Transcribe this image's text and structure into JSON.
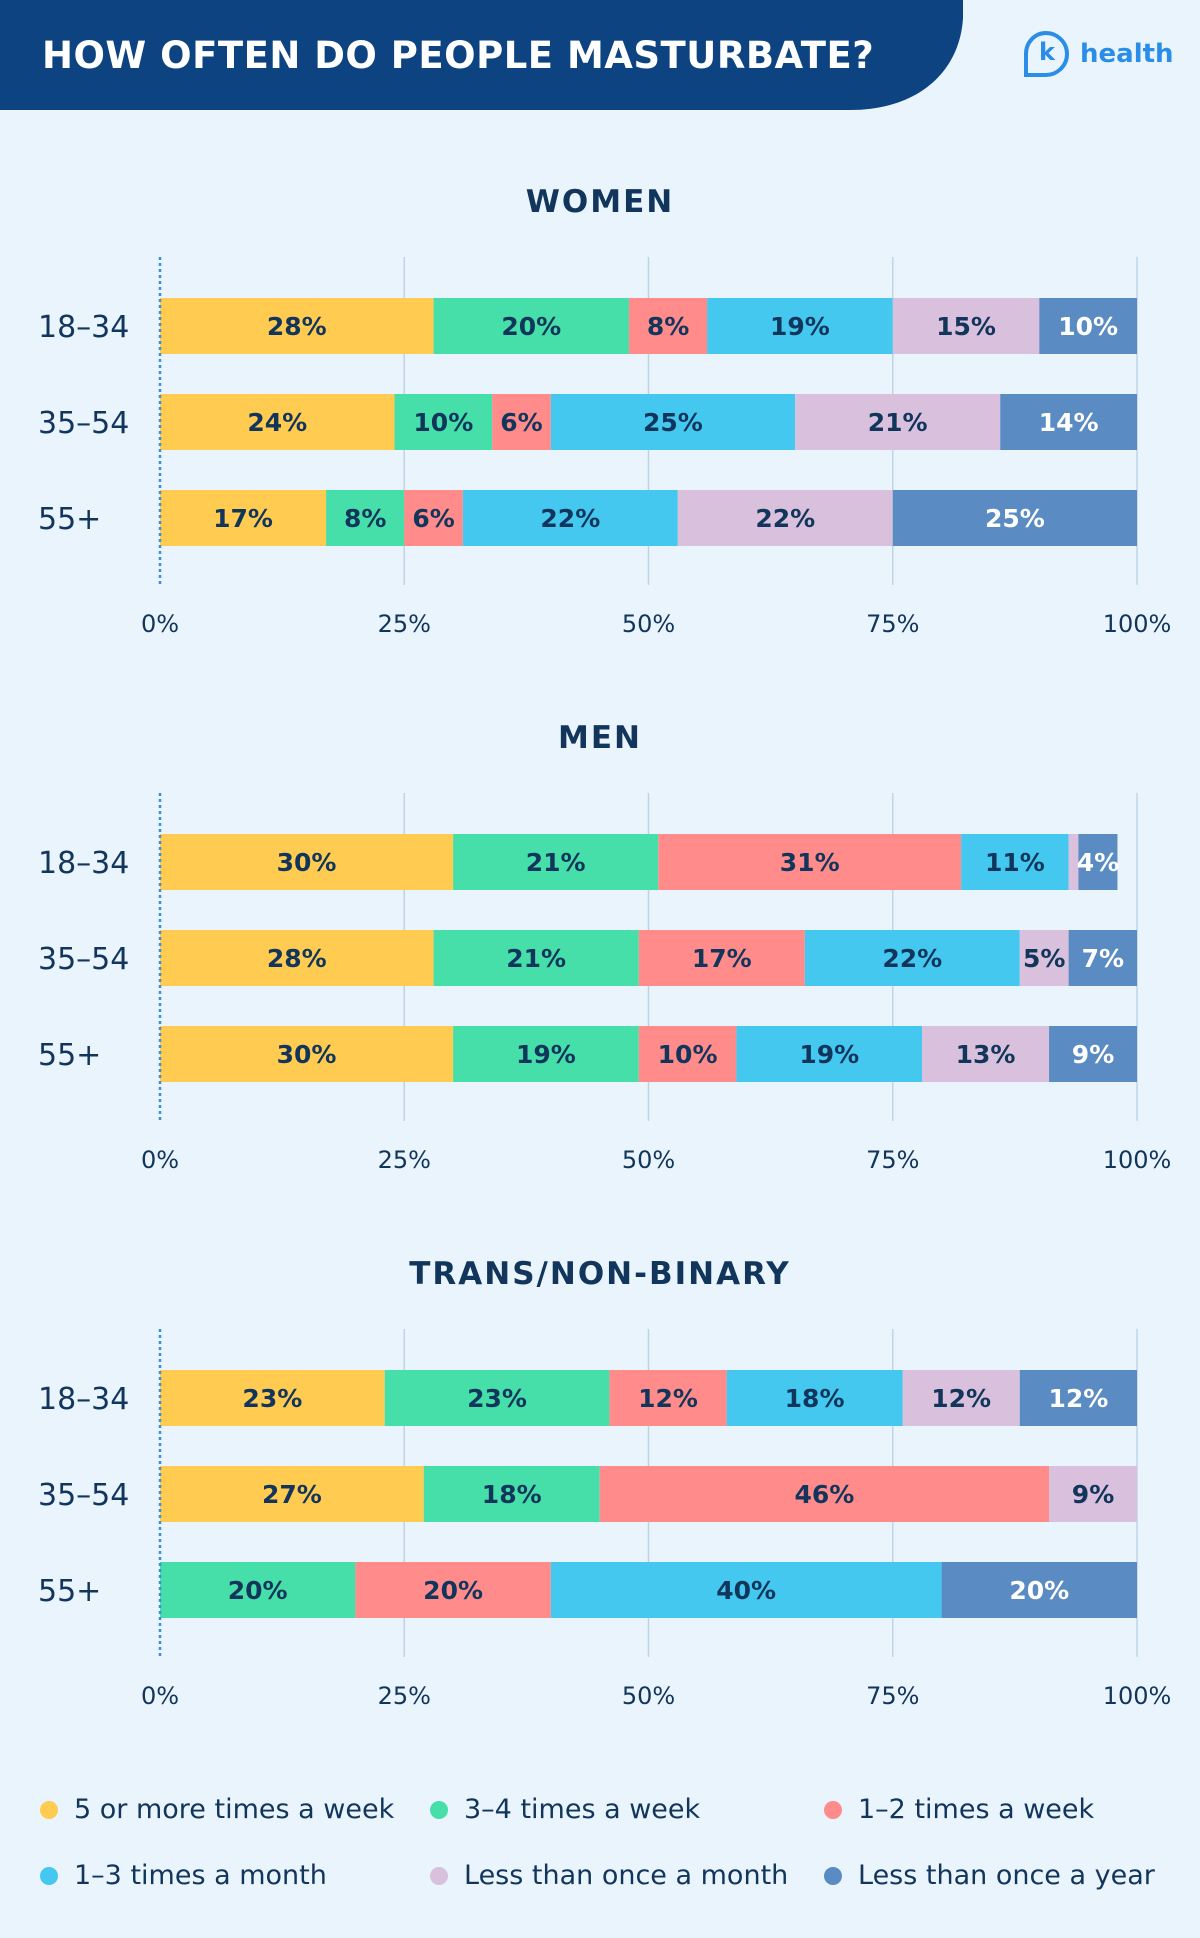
{
  "header": {
    "title": "HOW OFTEN DO PEOPLE MASTURBATE?",
    "banner_color": "#0E4382"
  },
  "logo": {
    "letter": "k",
    "text": "health",
    "color": "#2A8DE8"
  },
  "colors": {
    "text_dark": "#12355B",
    "grid": "#BFD5E6",
    "zero_line": "#3A8FD8"
  },
  "chart_data": [
    {
      "type": "bar",
      "stacked": true,
      "orientation": "horizontal",
      "title": "WOMEN",
      "categories": [
        "18-34",
        "35-54",
        "55+"
      ],
      "xlim": [
        0,
        100
      ],
      "xticks": [
        "0%",
        "25%",
        "50%",
        "75%",
        "100%"
      ],
      "grid": true,
      "series": [
        {
          "name": "5 or more times a week",
          "color": "#FFCB51",
          "values": [
            28,
            24,
            17
          ],
          "labels": [
            "28%",
            "24%",
            "17%"
          ]
        },
        {
          "name": "3-4 times a week",
          "color": "#47DFA9",
          "values": [
            20,
            10,
            8
          ],
          "labels": [
            "20%",
            "10%",
            "8%"
          ]
        },
        {
          "name": "1-2 times a week",
          "color": "#FF8B8B",
          "values": [
            8,
            6,
            6
          ],
          "labels": [
            "8%",
            "6%",
            "6%"
          ]
        },
        {
          "name": "1-3 times a month",
          "color": "#44C8EF",
          "values": [
            19,
            25,
            22
          ],
          "labels": [
            "19%",
            "25%",
            "22%"
          ]
        },
        {
          "name": "Less than once a month",
          "color": "#D9C0DC",
          "values": [
            15,
            21,
            22
          ],
          "labels": [
            "15%",
            "21%",
            "22%"
          ]
        },
        {
          "name": "Less than once a year",
          "color": "#5A8BC2",
          "values": [
            10,
            14,
            25
          ],
          "labels": [
            "10%",
            "14%",
            "25%"
          ]
        }
      ]
    },
    {
      "type": "bar",
      "stacked": true,
      "orientation": "horizontal",
      "title": "MEN",
      "categories": [
        "18-34",
        "35-54",
        "55+"
      ],
      "xlim": [
        0,
        100
      ],
      "xticks": [
        "0%",
        "25%",
        "50%",
        "75%",
        "100%"
      ],
      "grid": true,
      "series": [
        {
          "name": "5 or more times a week",
          "color": "#FFCB51",
          "values": [
            30,
            28,
            30
          ],
          "labels": [
            "30%",
            "28%",
            "30%"
          ]
        },
        {
          "name": "3-4 times a week",
          "color": "#47DFA9",
          "values": [
            21,
            21,
            19
          ],
          "labels": [
            "21%",
            "21%",
            "19%"
          ]
        },
        {
          "name": "1-2 times a week",
          "color": "#FF8B8B",
          "values": [
            31,
            17,
            10
          ],
          "labels": [
            "31%",
            "17%",
            "10%"
          ]
        },
        {
          "name": "1-3 times a month",
          "color": "#44C8EF",
          "values": [
            11,
            22,
            19
          ],
          "labels": [
            "11%",
            "22%",
            "19%"
          ]
        },
        {
          "name": "Less than once a month",
          "color": "#D9C0DC",
          "values": [
            1,
            5,
            13
          ],
          "labels": [
            "",
            "5%",
            "13%"
          ]
        },
        {
          "name": "Less than once a year",
          "color": "#5A8BC2",
          "values": [
            4,
            7,
            9
          ],
          "labels": [
            "4%",
            "7%",
            "9%"
          ]
        }
      ]
    },
    {
      "type": "bar",
      "stacked": true,
      "orientation": "horizontal",
      "title": "TRANS/NON-BINARY",
      "categories": [
        "18-34",
        "35-54",
        "55+"
      ],
      "xlim": [
        0,
        100
      ],
      "xticks": [
        "0%",
        "25%",
        "50%",
        "75%",
        "100%"
      ],
      "grid": true,
      "series": [
        {
          "name": "5 or more times a week",
          "color": "#FFCB51",
          "values": [
            23,
            27,
            0
          ],
          "labels": [
            "23%",
            "27%",
            ""
          ]
        },
        {
          "name": "3-4 times a week",
          "color": "#47DFA9",
          "values": [
            23,
            18,
            20
          ],
          "labels": [
            "23%",
            "18%",
            "20%"
          ]
        },
        {
          "name": "1-2 times a week",
          "color": "#FF8B8B",
          "values": [
            12,
            46,
            20
          ],
          "labels": [
            "12%",
            "46%",
            "20%"
          ]
        },
        {
          "name": "1-3 times a month",
          "color": "#44C8EF",
          "values": [
            18,
            0,
            40
          ],
          "labels": [
            "18%",
            "",
            "40%"
          ]
        },
        {
          "name": "Less than once a month",
          "color": "#D9C0DC",
          "values": [
            12,
            9,
            0
          ],
          "labels": [
            "12%",
            "9%",
            ""
          ]
        },
        {
          "name": "Less than once a year",
          "color": "#5A8BC2",
          "values": [
            12,
            0,
            20
          ],
          "labels": [
            "12%",
            "",
            "20%"
          ]
        }
      ]
    }
  ],
  "legend": [
    {
      "label": "5 or more times a week",
      "color": "#FFCB51"
    },
    {
      "label": "3-4 times a week",
      "color": "#47DFA9"
    },
    {
      "label": "1-2 times a week",
      "color": "#FF8B8B"
    },
    {
      "label": "1-3 times a month",
      "color": "#44C8EF"
    },
    {
      "label": "Less than once a month",
      "color": "#D9C0DC"
    },
    {
      "label": "Less than once a year",
      "color": "#5A8BC2"
    }
  ]
}
